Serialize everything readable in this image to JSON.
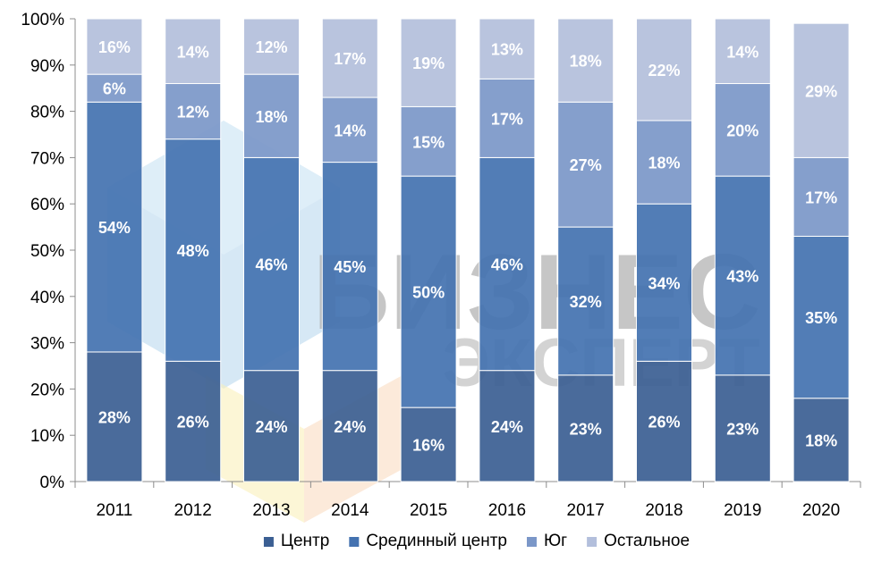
{
  "chart_data": {
    "type": "bar",
    "stacked": true,
    "categories": [
      "2011",
      "2012",
      "2013",
      "2014",
      "2015",
      "2016",
      "2017",
      "2018",
      "2019",
      "2020"
    ],
    "series": [
      {
        "name": "Центр",
        "color": "#3b5f93",
        "values": [
          28,
          26,
          24,
          24,
          16,
          24,
          23,
          26,
          23,
          18
        ],
        "labels": [
          "28%",
          "26%",
          "24%",
          "24%",
          "16%",
          "24%",
          "23%",
          "26%",
          "23%",
          "18%"
        ]
      },
      {
        "name": "Срединный центр",
        "color": "#4472b0",
        "values": [
          54,
          48,
          46,
          45,
          50,
          46,
          32,
          34,
          43,
          35
        ],
        "labels": [
          "54%",
          "48%",
          "46%",
          "45%",
          "50%",
          "46%",
          "32%",
          "34%",
          "43%",
          "35%"
        ]
      },
      {
        "name": "Юг",
        "color": "#7b97c8",
        "values": [
          6,
          12,
          18,
          14,
          15,
          17,
          27,
          18,
          20,
          17
        ],
        "labels": [
          "6%",
          "12%",
          "18%",
          "14%",
          "15%",
          "17%",
          "27%",
          "18%",
          "20%",
          "17%"
        ]
      },
      {
        "name": "Остальное",
        "color": "#b3bfdc",
        "values": [
          16,
          14,
          12,
          17,
          19,
          13,
          18,
          22,
          14,
          29
        ],
        "labels": [
          "16%",
          "14%",
          "12%",
          "17%",
          "19%",
          "13%",
          "18%",
          "22%",
          "14%",
          "29%"
        ]
      }
    ],
    "y_ticks": [
      "0%",
      "10%",
      "20%",
      "30%",
      "40%",
      "50%",
      "60%",
      "70%",
      "80%",
      "90%",
      "100%"
    ],
    "ylim": [
      0,
      100
    ],
    "grid": false,
    "legend_position": "bottom"
  },
  "watermark": {
    "line1": "БИЗНЕС",
    "line2": "ЭКСПЕРТ"
  }
}
